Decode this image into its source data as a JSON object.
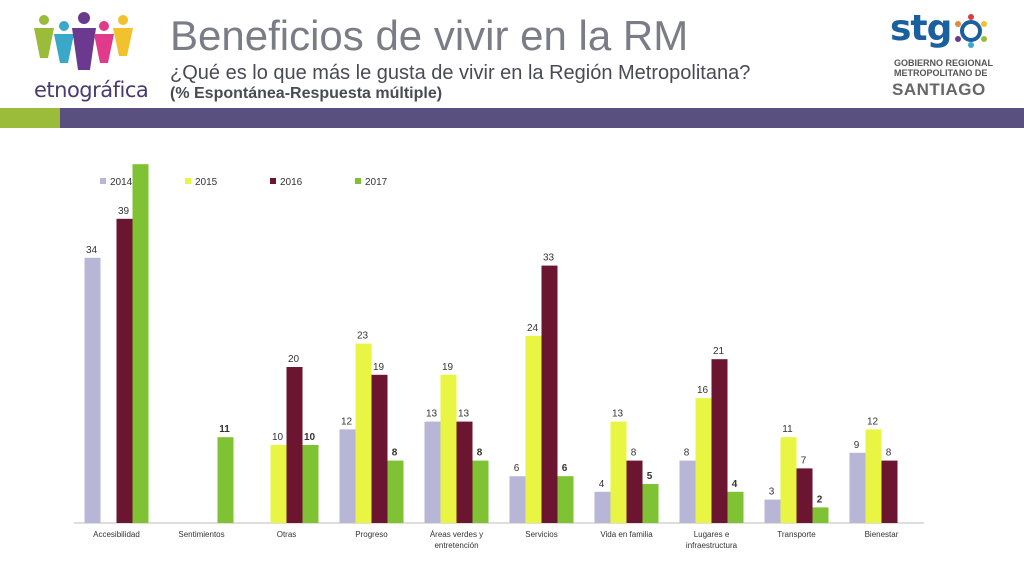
{
  "header": {
    "title": "Beneficios de vivir en la RM",
    "subtitle": "¿Qué es lo que más le gusta de vivir en la Región Metropolitana?",
    "subtitle2": "(% Espontánea-Respuesta múltiple)",
    "left_logo_text": "etnográfica",
    "right_logo_text": "stg",
    "right_logo_sub1": "GOBIERNO REGIONAL",
    "right_logo_sub2": "METROPOLITANO DE",
    "right_logo_sub3": "SANTIAGO"
  },
  "colors": {
    "accent_green": "#9bbb3b",
    "accent_purple": "#5a5080",
    "s2014": "#b8b6d6",
    "s2015": "#e8f542",
    "s2016": "#6b1530",
    "s2017": "#7fc233"
  },
  "chart_data": {
    "type": "bar",
    "categories": [
      "Accesibilidad",
      "Sentimientos",
      "Otras",
      "Progreso",
      "Áreas verdes y entretención",
      "Servicios",
      "Vida en familia",
      "Lugares e infraestructura",
      "Transporte",
      "Bienestar"
    ],
    "series": [
      {
        "name": "2014",
        "values": [
          34,
          null,
          null,
          12,
          13,
          6,
          4,
          8,
          3,
          9
        ]
      },
      {
        "name": "2015",
        "values": [
          null,
          null,
          10,
          23,
          19,
          24,
          13,
          16,
          11,
          12
        ]
      },
      {
        "name": "2016",
        "values": [
          39,
          null,
          20,
          19,
          13,
          33,
          8,
          21,
          7,
          8
        ]
      },
      {
        "name": "2017",
        "values": [
          46,
          11,
          10,
          8,
          8,
          6,
          5,
          4,
          2,
          null
        ]
      }
    ],
    "ylim": [
      0,
      50
    ],
    "legend": "top-left",
    "grid": false,
    "bold_labels_series": "2017"
  }
}
